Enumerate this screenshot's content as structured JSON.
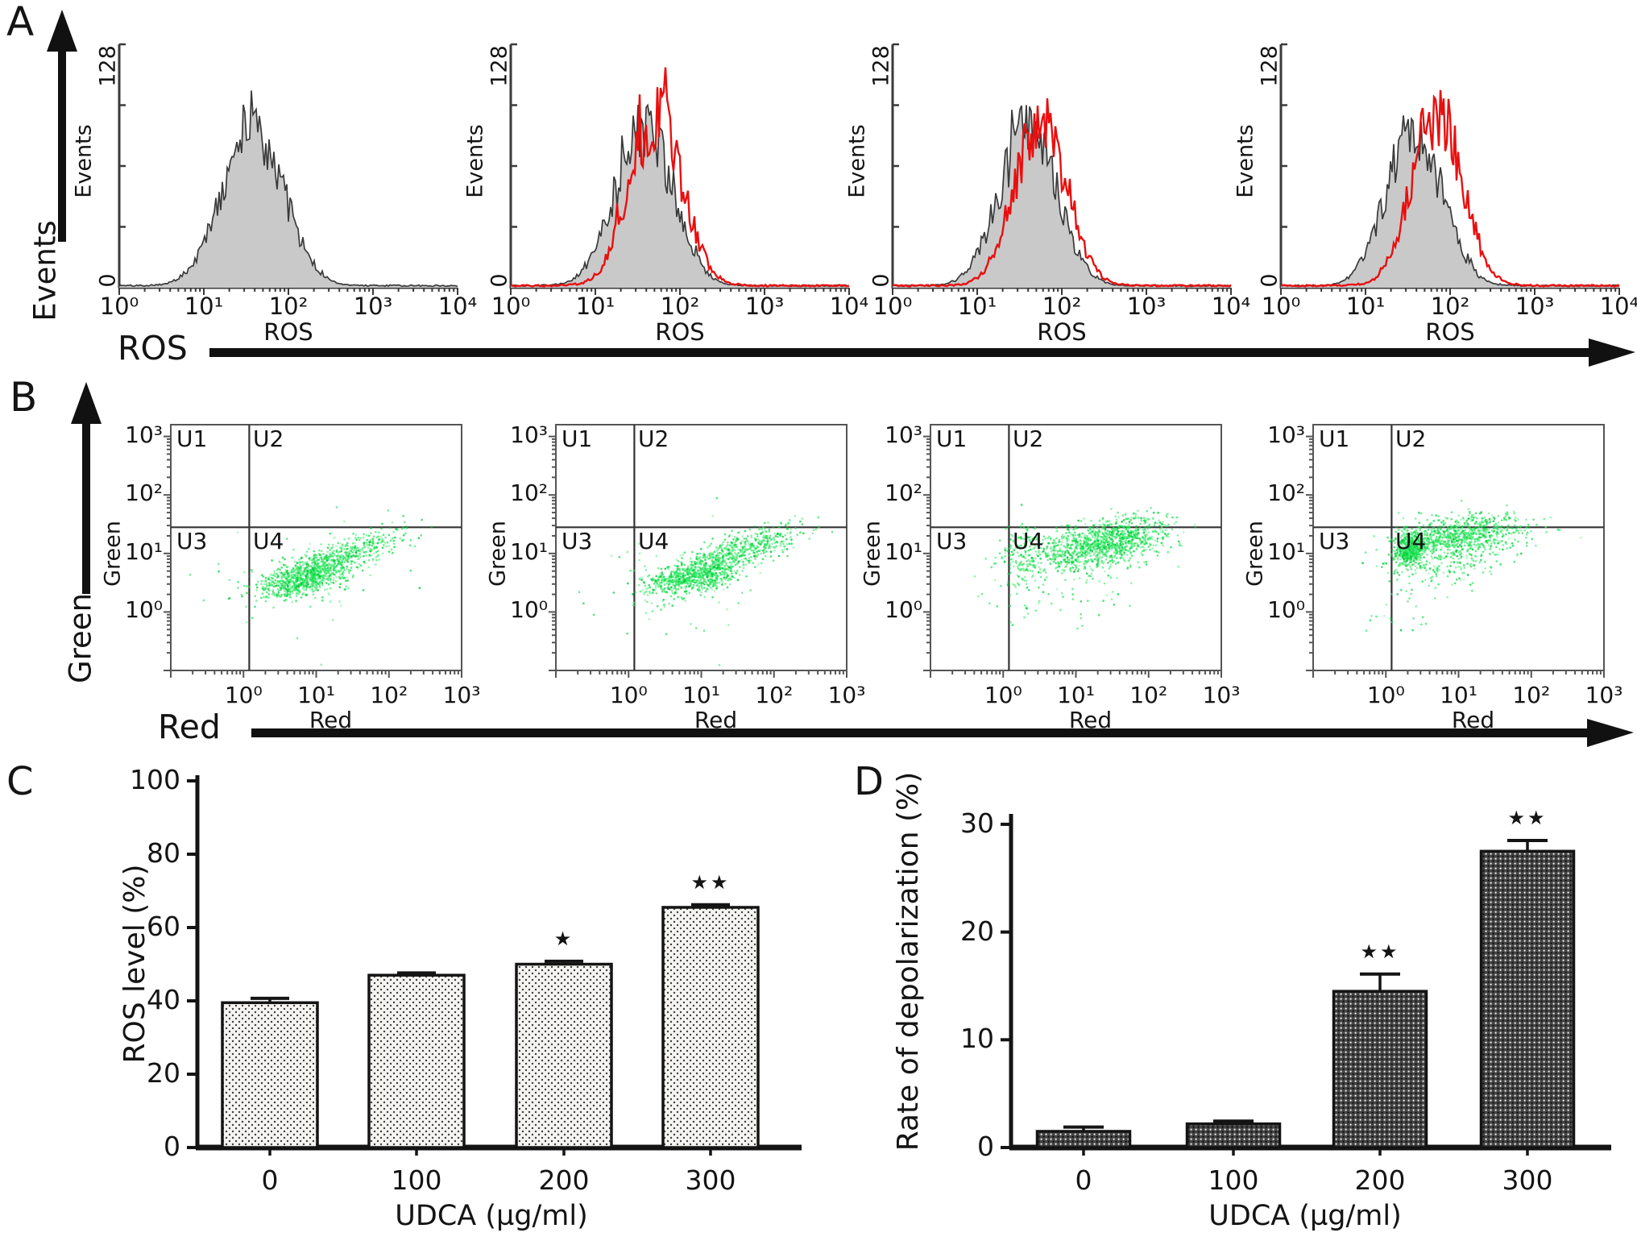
{
  "panels": {
    "A": {
      "letter": "A",
      "big_y_label": "Events",
      "big_x_label": "ROS"
    },
    "B": {
      "letter": "B",
      "big_y_label": "Green",
      "big_x_label": "Red"
    },
    "C": {
      "letter": "C"
    },
    "D": {
      "letter": "D"
    }
  },
  "chart_data": [
    {
      "panel": "A",
      "type": "area",
      "subtype": "flow-cytometry-histogram-overlays",
      "xlabel": "ROS",
      "ylabel": "Events",
      "x_scale": "log10",
      "x_ticks": [
        "10⁰",
        "10¹",
        "10²",
        "10³",
        "10⁴"
      ],
      "y_ticks": [
        "0",
        "128"
      ],
      "ylim": [
        0,
        128
      ],
      "control_fill": "#c9c9c9",
      "control_outline": "#3a3a3a",
      "overlay_color": "#e90f0f",
      "plots": [
        {
          "control_peak_x": 38,
          "control_peak_events": 84,
          "control_spread_decades": 0.36,
          "overlay_peak_x": null,
          "overlay_peak_events": null,
          "overlay_spread_decades": null
        },
        {
          "control_peak_x": 38,
          "control_peak_events": 82,
          "control_spread_decades": 0.34,
          "overlay_peak_x": 52,
          "overlay_peak_events": 88,
          "overlay_spread_decades": 0.31
        },
        {
          "control_peak_x": 40,
          "control_peak_events": 81,
          "control_spread_decades": 0.34,
          "overlay_peak_x": 56,
          "overlay_peak_events": 86,
          "overlay_spread_decades": 0.31
        },
        {
          "control_peak_x": 38,
          "control_peak_events": 80,
          "control_spread_decades": 0.33,
          "overlay_peak_x": 70,
          "overlay_peak_events": 90,
          "overlay_spread_decades": 0.3
        }
      ]
    },
    {
      "panel": "B",
      "type": "scatter",
      "subtype": "flow-cytometry-dot-plots",
      "xlabel": "Red",
      "ylabel": "Green",
      "x_scale": "log10",
      "y_scale": "log10",
      "x_ticks": [
        "10⁰",
        "10¹",
        "10²",
        "10³"
      ],
      "y_ticks": [
        "10⁰",
        "10¹",
        "10²",
        "10³"
      ],
      "quadrant_labels": [
        "U1",
        "U2",
        "U3",
        "U4"
      ],
      "quadrant_x_boundary": 1.2,
      "quadrant_y_boundary": 28,
      "point_colors": [
        "#0bdf45",
        "#27e95b",
        "#00c838",
        "#52ef7d"
      ],
      "plots": [
        {
          "clusters": [
            {
              "n": 780,
              "cx": 0.82,
              "cy": 0.58,
              "sx": 0.3,
              "sy": 0.17,
              "rho": 0.5
            },
            {
              "n": 420,
              "cx": 1.45,
              "cy": 0.98,
              "sx": 0.4,
              "sy": 0.22,
              "rho": 0.75
            },
            {
              "n": 70,
              "cx": 0.9,
              "cy": 0.7,
              "sx": 0.7,
              "sy": 0.45,
              "rho": 0.3
            }
          ]
        },
        {
          "clusters": [
            {
              "n": 720,
              "cx": 0.88,
              "cy": 0.6,
              "sx": 0.32,
              "sy": 0.17,
              "rho": 0.5
            },
            {
              "n": 470,
              "cx": 1.55,
              "cy": 1.05,
              "sx": 0.4,
              "sy": 0.22,
              "rho": 0.7
            },
            {
              "n": 80,
              "cx": 0.7,
              "cy": 0.6,
              "sx": 0.7,
              "sy": 0.5,
              "rho": 0.2
            }
          ]
        },
        {
          "clusters": [
            {
              "n": 620,
              "cx": 1.15,
              "cy": 1.08,
              "sx": 0.4,
              "sy": 0.2,
              "rho": 0.25
            },
            {
              "n": 520,
              "cx": 1.65,
              "cy": 1.28,
              "sx": 0.35,
              "sy": 0.18,
              "rho": 0.3
            },
            {
              "n": 150,
              "cx": 0.25,
              "cy": 0.95,
              "sx": 0.15,
              "sy": 0.28,
              "rho": 0.1
            },
            {
              "n": 90,
              "cx": 0.8,
              "cy": 0.45,
              "sx": 0.5,
              "sy": 0.4,
              "rho": 0.2
            }
          ]
        },
        {
          "clusters": [
            {
              "n": 520,
              "cx": 0.34,
              "cy": 1.07,
              "sx": 0.1,
              "sy": 0.14,
              "rho": 0.2
            },
            {
              "n": 680,
              "cx": 1.05,
              "cy": 1.33,
              "sx": 0.45,
              "sy": 0.17,
              "rho": 0.3
            },
            {
              "n": 230,
              "cx": 0.95,
              "cy": 1.0,
              "sx": 0.4,
              "sy": 0.22,
              "rho": 0.2
            },
            {
              "n": 80,
              "cx": 0.4,
              "cy": 0.5,
              "sx": 0.35,
              "sy": 0.4,
              "rho": 0.1
            }
          ]
        }
      ]
    },
    {
      "panel": "C",
      "type": "bar",
      "title": "",
      "xlabel": "UDCA (µg/ml)",
      "ylabel": "ROS level (%)",
      "categories": [
        "0",
        "100",
        "200",
        "300"
      ],
      "values": [
        39.5,
        47,
        50,
        65.5
      ],
      "errors": [
        1.2,
        0.6,
        0.8,
        0.7
      ],
      "significance": [
        "",
        "",
        "*",
        "**"
      ],
      "ylim": [
        0,
        100
      ],
      "y_ticks": [
        0,
        20,
        40,
        60,
        80,
        100
      ],
      "bar_pattern": "dotted",
      "bar_border_color": "#141414"
    },
    {
      "panel": "D",
      "type": "bar",
      "title": "",
      "xlabel": "UDCA (µg/ml)",
      "ylabel": "Rate of depolarization (%)",
      "categories": [
        "0",
        "100",
        "200",
        "300"
      ],
      "values": [
        1.5,
        2.2,
        14.5,
        27.5
      ],
      "errors": [
        0.4,
        0.25,
        1.6,
        1.0
      ],
      "significance": [
        "",
        "",
        "**",
        "**"
      ],
      "ylim": [
        0,
        30
      ],
      "y_ticks": [
        0,
        10,
        20,
        30
      ],
      "bar_pattern": "crosshatch",
      "bar_border_color": "#141414"
    }
  ]
}
